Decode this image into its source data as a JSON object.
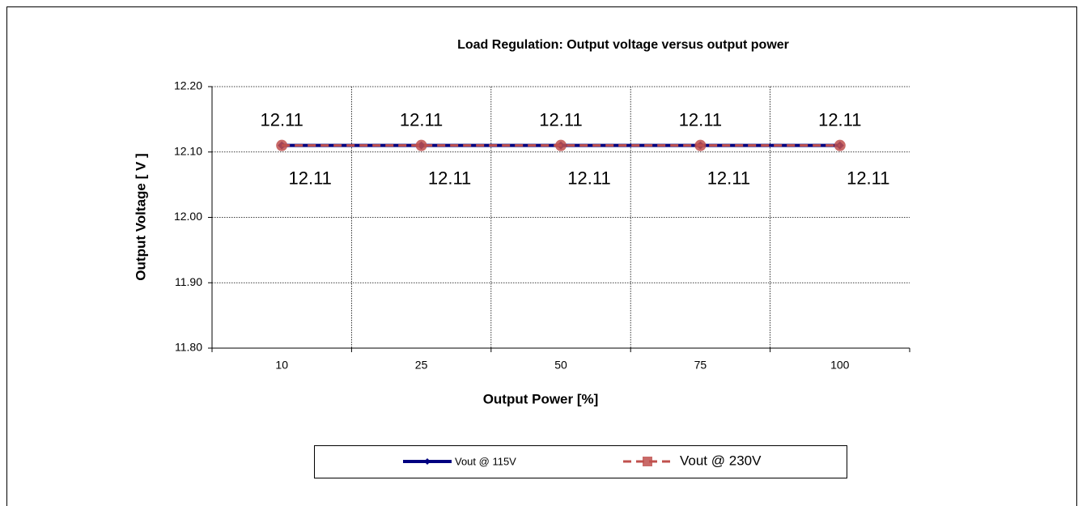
{
  "chart_data": {
    "type": "line",
    "title": "Load Regulation: Output voltage versus output power",
    "x_label": "Output Power [%]",
    "y_label": "Output Voltage [ V ]",
    "categories": [
      "10",
      "25",
      "50",
      "75",
      "100"
    ],
    "series": [
      {
        "name": "Vout @ 115V",
        "color": "#000080",
        "values": [
          12.11,
          12.11,
          12.11,
          12.11,
          12.11
        ]
      },
      {
        "name": "Vout @ 230V",
        "color": "#c0504d",
        "values": [
          12.11,
          12.11,
          12.11,
          12.11,
          12.11
        ]
      }
    ],
    "ylim": [
      11.8,
      12.2
    ],
    "yticks": [
      {
        "value": 11.8,
        "label": "11.80"
      },
      {
        "value": 11.9,
        "label": "11.90"
      },
      {
        "value": 12.0,
        "label": "12.00"
      },
      {
        "value": 12.1,
        "label": "12.10"
      },
      {
        "value": 12.2,
        "label": "12.20"
      }
    ],
    "grid": true,
    "legend": "bottom"
  }
}
